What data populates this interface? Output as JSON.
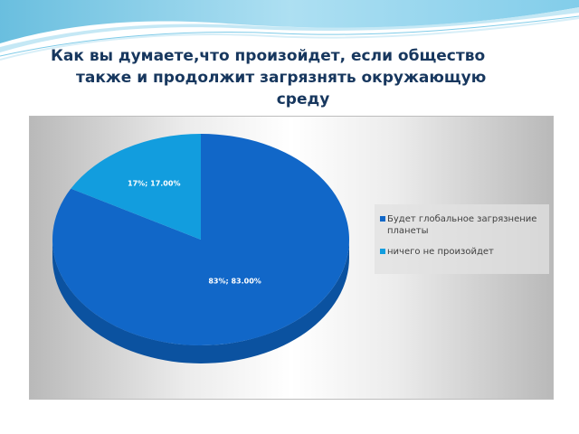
{
  "title": {
    "line1": "Как  вы думаете,что произойдет, если общество",
    "line2": "также и продолжит загрязнять окружающую",
    "line3": "среду"
  },
  "colors": {
    "title": "#17375e",
    "slice_main": "#1167c8",
    "slice_main_side": "#0b52a0",
    "slice_minor": "#129dde"
  },
  "chart_data": {
    "type": "pie",
    "title": "",
    "categories": [
      "Будет глобальное загрязнение планеты",
      "ничего не произойдет"
    ],
    "values": [
      83,
      17
    ],
    "data_labels": [
      "83%; 83.00%",
      "17%; 17.00%"
    ],
    "legend": {
      "placement": "right",
      "entries": [
        "Будет глобальное загрязнение планеты",
        "ничего не произойдет"
      ]
    },
    "style": "3d"
  }
}
